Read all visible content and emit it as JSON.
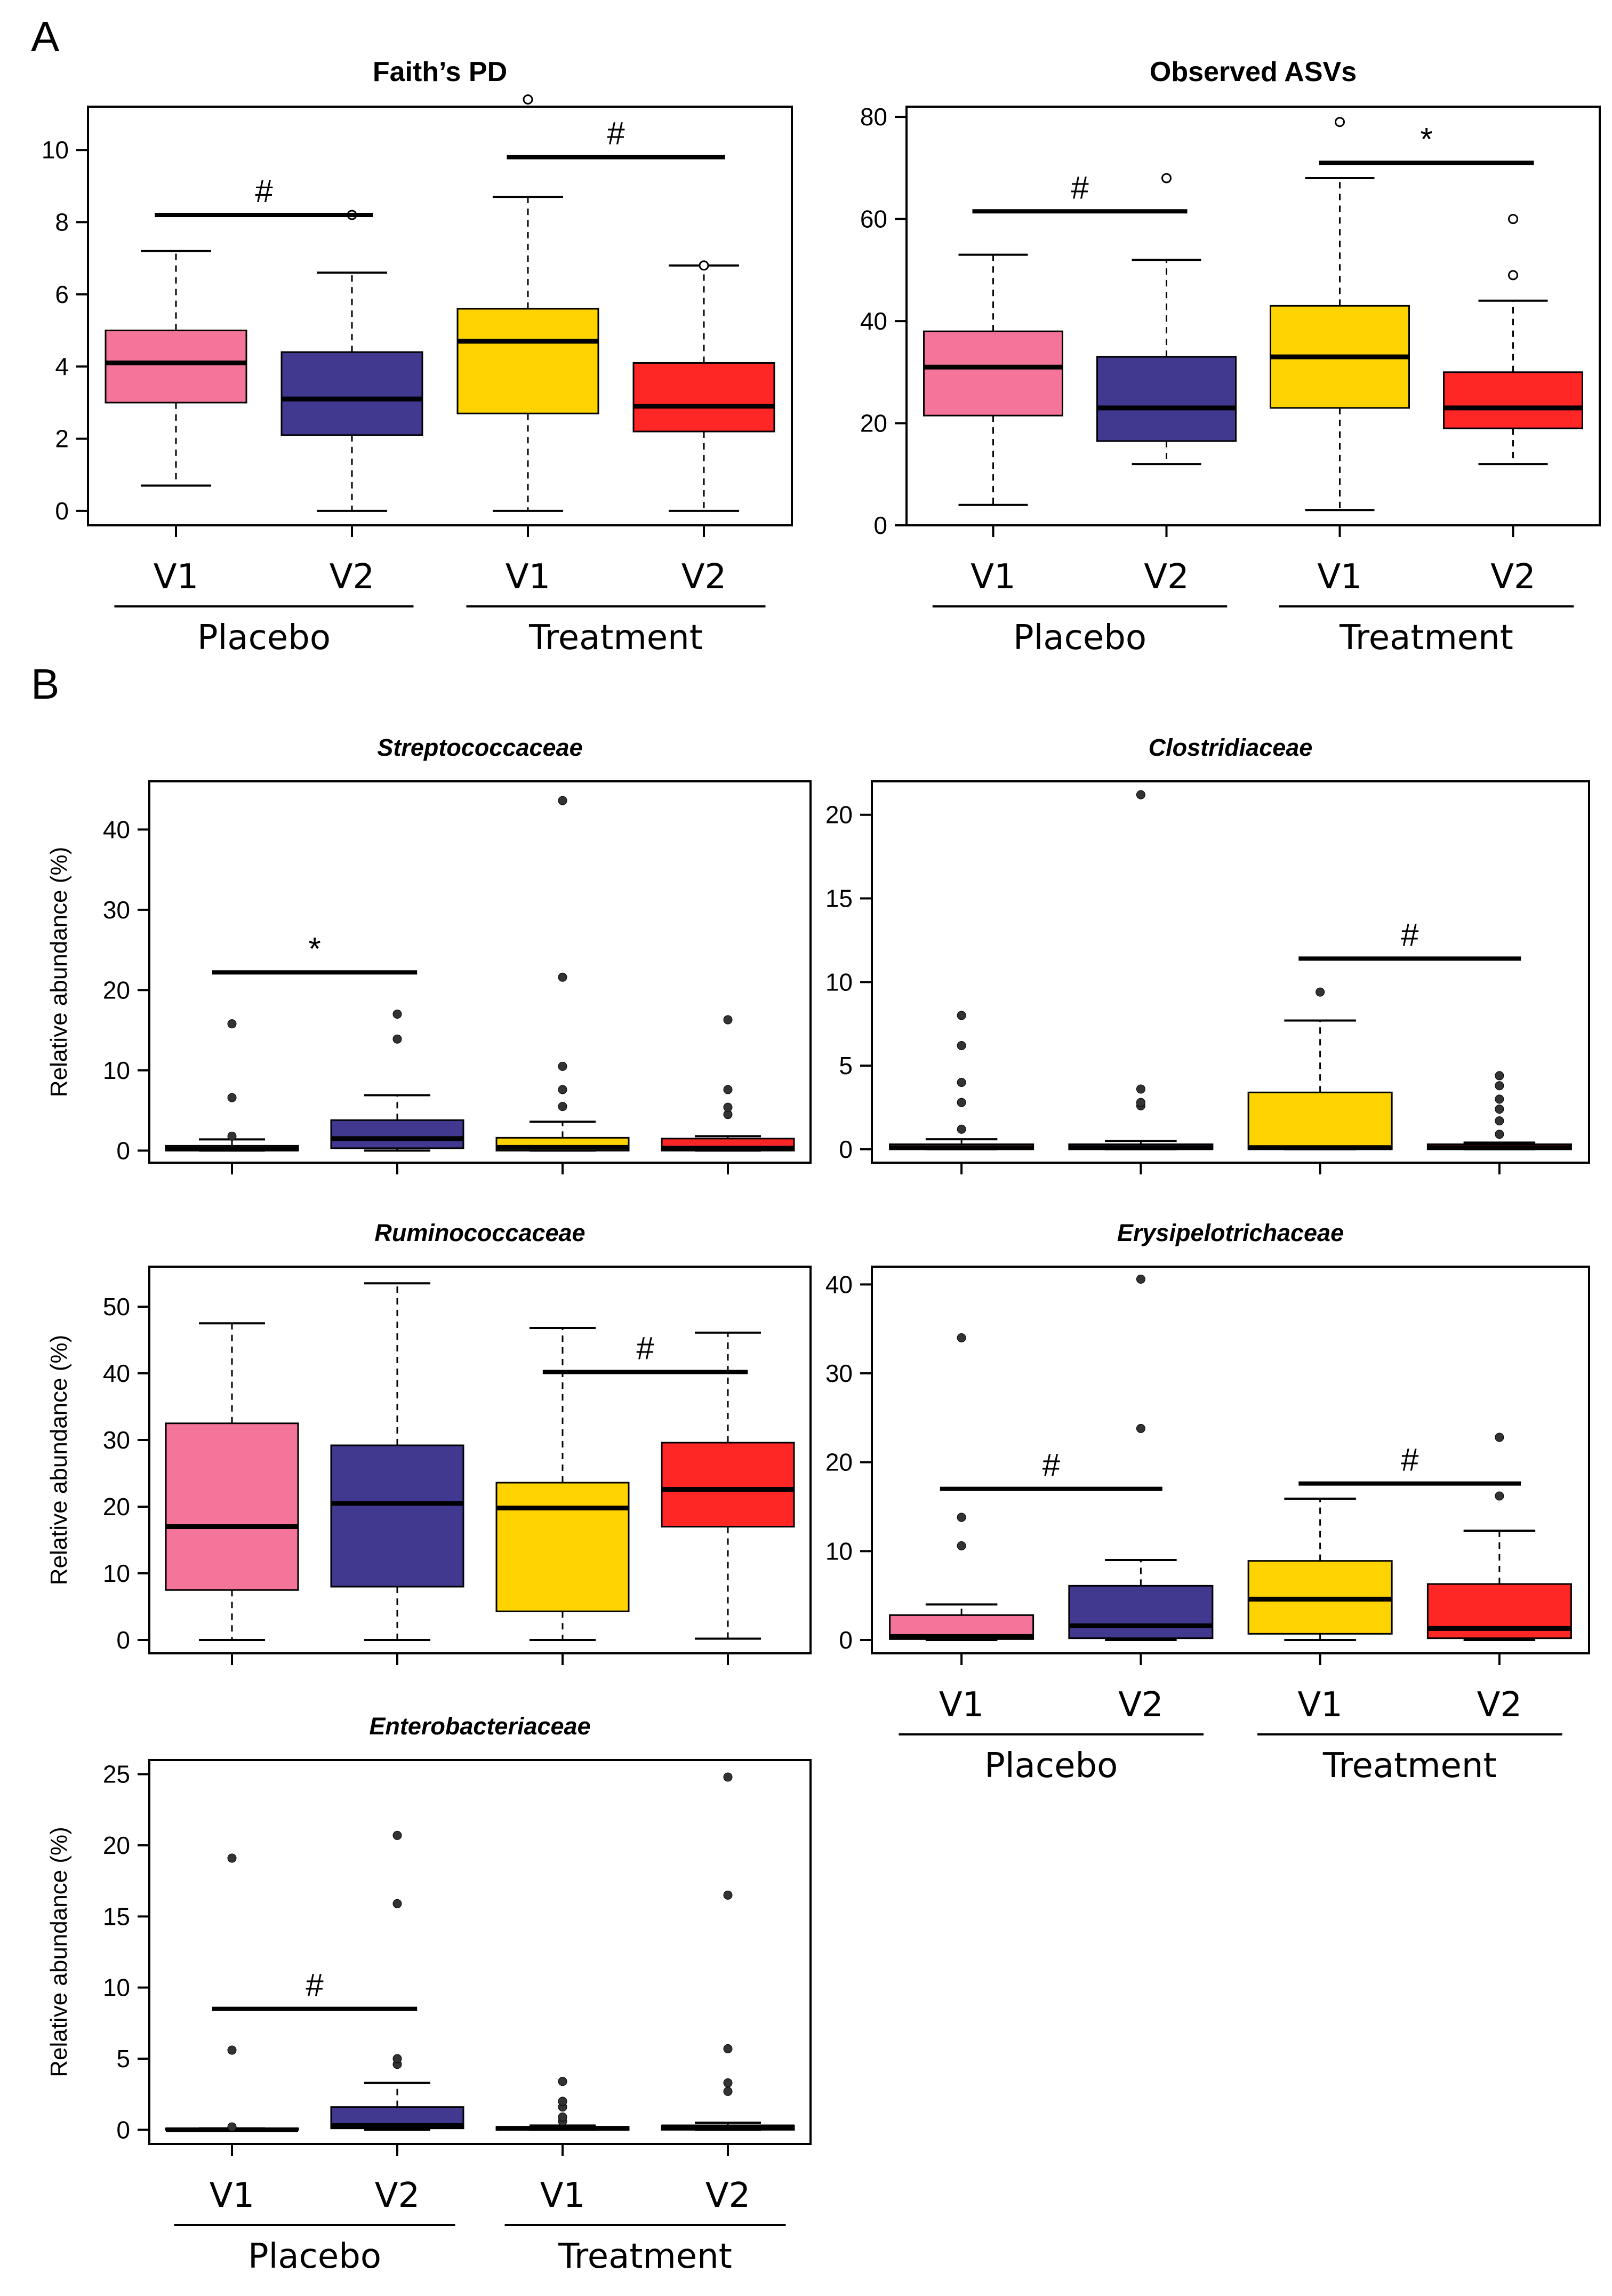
{
  "panel_labels": {
    "a": "A",
    "b": "B"
  },
  "group_axis": {
    "visits": [
      "V1",
      "V2",
      "V1",
      "V2"
    ],
    "groups": [
      "Placebo",
      "Treatment"
    ]
  },
  "colors": {
    "placebo_v1": "#F47599",
    "placebo_v2": "#41388F",
    "treatment_v1": "#FFD300",
    "treatment_v2": "#FF2626"
  },
  "chart_data": [
    {
      "id": "faiths-pd",
      "type": "box",
      "panel": "A",
      "title": "Faith’s PD",
      "title_style": "normal",
      "ylabel": "",
      "ylim": [
        -0.4,
        11.2
      ],
      "yticks": [
        0,
        2,
        4,
        6,
        8,
        10
      ],
      "categories": [
        "Placebo V1",
        "Placebo V2",
        "Treatment V1",
        "Treatment V2"
      ],
      "boxes": [
        {
          "min": 0.7,
          "q1": 3.0,
          "median": 4.1,
          "q3": 5.0,
          "max": 7.2,
          "outliers": []
        },
        {
          "min": 0.0,
          "q1": 2.1,
          "median": 3.1,
          "q3": 4.4,
          "max": 6.6,
          "outliers": [
            8.2
          ]
        },
        {
          "min": 0.0,
          "q1": 2.7,
          "median": 4.7,
          "q3": 5.6,
          "max": 8.7,
          "outliers": [
            11.4
          ]
        },
        {
          "min": 0.0,
          "q1": 2.2,
          "median": 2.9,
          "q3": 4.1,
          "max": 6.8,
          "outliers": [
            6.8
          ]
        }
      ],
      "annotations": [
        {
          "from": 0,
          "to": 1,
          "y": 8.2,
          "label": "#"
        },
        {
          "from": 2,
          "to": 3,
          "y": 9.8,
          "label": "#"
        }
      ]
    },
    {
      "id": "observed-asvs",
      "type": "box",
      "panel": "A",
      "title": "Observed ASVs",
      "title_style": "normal",
      "ylabel": "",
      "ylim": [
        0,
        82
      ],
      "yticks": [
        0,
        20,
        40,
        60,
        80
      ],
      "categories": [
        "Placebo V1",
        "Placebo V2",
        "Treatment V1",
        "Treatment V2"
      ],
      "boxes": [
        {
          "min": 4,
          "q1": 21.5,
          "median": 31,
          "q3": 38,
          "max": 53,
          "outliers": []
        },
        {
          "min": 12,
          "q1": 16.5,
          "median": 23,
          "q3": 33,
          "max": 52,
          "outliers": [
            68
          ]
        },
        {
          "min": 3,
          "q1": 23,
          "median": 33,
          "q3": 43,
          "max": 68,
          "outliers": [
            79
          ]
        },
        {
          "min": 12,
          "q1": 19,
          "median": 23,
          "q3": 30,
          "max": 44,
          "outliers": [
            49,
            60
          ]
        }
      ],
      "annotations": [
        {
          "from": 0,
          "to": 1,
          "y": 61.5,
          "label": "#"
        },
        {
          "from": 2,
          "to": 3,
          "y": 71,
          "label": "*"
        }
      ]
    },
    {
      "id": "streptococcaceae",
      "type": "box",
      "panel": "B",
      "title": "Streptococcaceae",
      "title_style": "italic",
      "ylabel": "Relative abundance (%)",
      "ylim": [
        -1.5,
        46
      ],
      "yticks": [
        0,
        10,
        20,
        30,
        40
      ],
      "categories": [
        "Placebo V1",
        "Placebo V2",
        "Treatment V1",
        "Treatment V2"
      ],
      "boxes": [
        {
          "min": 0,
          "q1": 0,
          "median": 0.2,
          "q3": 0.6,
          "max": 1.4,
          "outliers": [
            1.8,
            6.6,
            15.8
          ]
        },
        {
          "min": 0,
          "q1": 0.3,
          "median": 1.5,
          "q3": 3.8,
          "max": 6.9,
          "outliers": [
            13.9,
            17.0
          ]
        },
        {
          "min": 0,
          "q1": 0,
          "median": 0.4,
          "q3": 1.6,
          "max": 3.6,
          "outliers": [
            5.5,
            7.6,
            10.5,
            21.6,
            43.6
          ]
        },
        {
          "min": 0,
          "q1": 0,
          "median": 0.3,
          "q3": 1.5,
          "max": 1.8,
          "outliers": [
            4.5,
            5.4,
            7.6,
            16.3
          ]
        }
      ],
      "annotations": [
        {
          "from": 0,
          "to": 1,
          "y": 22.2,
          "label": "*"
        }
      ]
    },
    {
      "id": "clostridiaceae",
      "type": "box",
      "panel": "B",
      "title": "Clostridiaceae",
      "title_style": "italic",
      "ylabel": "",
      "ylim": [
        -0.8,
        22
      ],
      "yticks": [
        0,
        5,
        10,
        15,
        20
      ],
      "categories": [
        "Placebo V1",
        "Placebo V2",
        "Treatment V1",
        "Treatment V2"
      ],
      "boxes": [
        {
          "min": 0,
          "q1": 0,
          "median": 0.1,
          "q3": 0.3,
          "max": 0.6,
          "outliers": [
            1.2,
            2.8,
            4.0,
            6.2,
            8.0
          ]
        },
        {
          "min": 0,
          "q1": 0,
          "median": 0.1,
          "q3": 0.3,
          "max": 0.5,
          "outliers": [
            2.6,
            2.8,
            3.6,
            21.2
          ]
        },
        {
          "min": 0,
          "q1": 0,
          "median": 0.1,
          "q3": 3.4,
          "max": 7.7,
          "outliers": [
            9.4
          ]
        },
        {
          "min": 0,
          "q1": 0,
          "median": 0.1,
          "q3": 0.3,
          "max": 0.4,
          "outliers": [
            0.9,
            1.7,
            2.4,
            3.0,
            3.8,
            4.4
          ]
        }
      ],
      "annotations": [
        {
          "from": 2,
          "to": 3,
          "y": 11.4,
          "label": "#"
        }
      ]
    },
    {
      "id": "ruminococcaceae",
      "type": "box",
      "panel": "B",
      "title": "Ruminococcaceae",
      "title_style": "italic",
      "ylabel": "Relative abundance (%)",
      "ylim": [
        -2,
        56
      ],
      "yticks": [
        0,
        10,
        20,
        30,
        40,
        50
      ],
      "categories": [
        "Placebo V1",
        "Placebo V2",
        "Treatment V1",
        "Treatment V2"
      ],
      "boxes": [
        {
          "min": 0,
          "q1": 7.5,
          "median": 17,
          "q3": 32.5,
          "max": 47.5,
          "outliers": []
        },
        {
          "min": 0,
          "q1": 8,
          "median": 20.5,
          "q3": 29.2,
          "max": 53.5,
          "outliers": []
        },
        {
          "min": 0,
          "q1": 4.3,
          "median": 19.8,
          "q3": 23.6,
          "max": 46.8,
          "outliers": []
        },
        {
          "min": 0.2,
          "q1": 17,
          "median": 22.6,
          "q3": 29.6,
          "max": 46.1,
          "outliers": []
        }
      ],
      "annotations": [
        {
          "from": 2,
          "to": 3,
          "y": 40.2,
          "label": "#"
        }
      ]
    },
    {
      "id": "erysipelotrichaceae",
      "type": "box",
      "panel": "B",
      "title": "Erysipelotrichaceae",
      "title_style": "italic",
      "ylabel": "",
      "ylim": [
        -1.5,
        42
      ],
      "yticks": [
        0,
        10,
        20,
        30,
        40
      ],
      "categories": [
        "Placebo V1",
        "Placebo V2",
        "Treatment V1",
        "Treatment V2"
      ],
      "boxes": [
        {
          "min": 0,
          "q1": 0.1,
          "median": 0.4,
          "q3": 2.8,
          "max": 4.0,
          "outliers": [
            10.6,
            13.8,
            34.0
          ]
        },
        {
          "min": 0,
          "q1": 0.2,
          "median": 1.6,
          "q3": 6.1,
          "max": 9.0,
          "outliers": [
            23.8,
            40.6
          ]
        },
        {
          "min": 0,
          "q1": 0.7,
          "median": 4.6,
          "q3": 8.9,
          "max": 15.9,
          "outliers": []
        },
        {
          "min": 0,
          "q1": 0.2,
          "median": 1.3,
          "q3": 6.3,
          "max": 12.3,
          "outliers": [
            16.2,
            22.8
          ]
        }
      ],
      "annotations": [
        {
          "from": 0,
          "to": 1,
          "y": 17.0,
          "label": "#"
        },
        {
          "from": 2,
          "to": 3,
          "y": 17.6,
          "label": "#"
        }
      ]
    },
    {
      "id": "enterobacteriaceae",
      "type": "box",
      "panel": "B",
      "title": "Enterobacteriaceae",
      "title_style": "italic",
      "ylabel": "Relative abundance (%)",
      "ylim": [
        -1,
        26
      ],
      "yticks": [
        0,
        5,
        10,
        15,
        20,
        25
      ],
      "categories": [
        "Placebo V1",
        "Placebo V2",
        "Treatment V1",
        "Treatment V2"
      ],
      "boxes": [
        {
          "min": 0,
          "q1": 0,
          "median": 0,
          "q3": 0.1,
          "max": 0.1,
          "outliers": [
            0.2,
            5.6,
            19.1
          ]
        },
        {
          "min": 0,
          "q1": 0.1,
          "median": 0.3,
          "q3": 1.6,
          "max": 3.3,
          "outliers": [
            4.6,
            5.0,
            15.9,
            20.7
          ]
        },
        {
          "min": 0,
          "q1": 0,
          "median": 0.1,
          "q3": 0.2,
          "max": 0.3,
          "outliers": [
            0.6,
            0.9,
            1.6,
            2.0,
            3.4
          ]
        },
        {
          "min": 0,
          "q1": 0,
          "median": 0.2,
          "q3": 0.3,
          "max": 0.5,
          "outliers": [
            2.7,
            3.3,
            5.7,
            16.5,
            24.8
          ]
        }
      ],
      "annotations": [
        {
          "from": 0,
          "to": 1,
          "y": 8.5,
          "label": "#"
        }
      ]
    }
  ]
}
